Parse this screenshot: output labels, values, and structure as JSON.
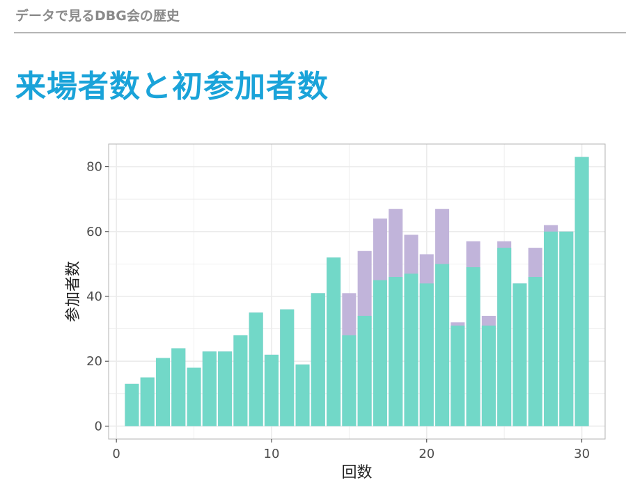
{
  "header": {
    "breadcrumb": "データで見るDBG会の歴史",
    "title": "来場者数と初参加者数"
  },
  "colors": {
    "title": "#1aa3d9",
    "breadcrumb": "#8a8a8a",
    "first_time": "#72d8c8",
    "total": "#c1b4da",
    "panel_border": "#b3b3b3",
    "grid": "#ebebeb"
  },
  "chart_data": {
    "type": "bar",
    "stacked": "overlay",
    "xlabel": "回数",
    "ylabel": "参加者数",
    "xlim": [
      -0.5,
      31.5
    ],
    "ylim": [
      -4,
      87
    ],
    "xticks": [
      0,
      10,
      20,
      30
    ],
    "yticks": [
      0,
      20,
      40,
      60,
      80
    ],
    "grid": true,
    "x": [
      1,
      2,
      3,
      4,
      5,
      6,
      7,
      8,
      9,
      10,
      11,
      12,
      13,
      14,
      15,
      16,
      17,
      18,
      19,
      20,
      21,
      22,
      23,
      24,
      25,
      26,
      27,
      28,
      29,
      30
    ],
    "series": [
      {
        "key": "total",
        "values": [
          13,
          15,
          21,
          24,
          18,
          23,
          23,
          28,
          35,
          22,
          36,
          19,
          41,
          52,
          41,
          54,
          64,
          67,
          59,
          53,
          67,
          32,
          57,
          34,
          57,
          44,
          55,
          62,
          60,
          83
        ]
      },
      {
        "key": "first_time",
        "values": [
          13,
          15,
          21,
          24,
          18,
          23,
          23,
          28,
          35,
          22,
          36,
          19,
          41,
          52,
          28,
          34,
          45,
          46,
          47,
          44,
          50,
          31,
          49,
          31,
          55,
          44,
          46,
          60,
          60,
          83
        ]
      }
    ]
  }
}
